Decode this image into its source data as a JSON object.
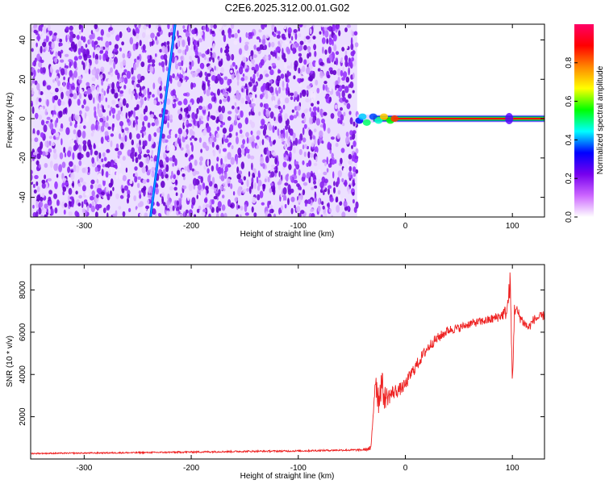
{
  "page_title": "C2E6.2025.312.00.01.G02",
  "chart_data": [
    {
      "type": "heatmap",
      "title": "C2E6.2025.312.00.01.G02",
      "xlabel": "Height of straight line (km)",
      "ylabel": "Frequency (Hz)",
      "xlim": [
        -350,
        130
      ],
      "ylim": [
        -50,
        48
      ],
      "x_ticks": [
        -300,
        -200,
        -100,
        0,
        100
      ],
      "y_ticks": [
        -40,
        -20,
        0,
        20,
        40
      ],
      "grid": false,
      "features": {
        "noise_region_x": [
          -350,
          -45
        ],
        "diagonal_trace": {
          "x": [
            -238,
            -215
          ],
          "y": [
            -50,
            48
          ]
        },
        "signal_line": {
          "x": [
            -45,
            130
          ],
          "y": 0
        },
        "spot_at_x": 97
      },
      "colorbar": {
        "label": "Normalized spectral amplitude",
        "ticks": [
          0.0,
          0.2,
          0.4,
          0.6,
          0.8
        ],
        "range": [
          0,
          1
        ],
        "colors": [
          "#ffffff",
          "#cc66ff",
          "#7700ee",
          "#0000ff",
          "#00ffff",
          "#00ff00",
          "#ffff00",
          "#ff8800",
          "#ff0000",
          "#ff0066"
        ]
      }
    },
    {
      "type": "line",
      "xlabel": "Height of straight line (km)",
      "ylabel": "SNR (10 * v/v)",
      "xlim": [
        -350,
        130
      ],
      "ylim": [
        0,
        9200
      ],
      "x_ticks": [
        -300,
        -200,
        -100,
        0,
        100
      ],
      "y_ticks": [
        2000,
        4000,
        6000,
        8000
      ],
      "grid": false,
      "series": [
        {
          "color": "#ee2222",
          "x": [
            -350,
            -300,
            -250,
            -200,
            -150,
            -100,
            -60,
            -40,
            -32,
            -28,
            -25,
            -22,
            -20,
            -15,
            -10,
            -5,
            0,
            5,
            10,
            15,
            20,
            25,
            30,
            40,
            50,
            60,
            70,
            80,
            90,
            95,
            98,
            100,
            102,
            105,
            110,
            115,
            120,
            130
          ],
          "values": [
            260,
            280,
            300,
            330,
            360,
            380,
            420,
            430,
            500,
            3900,
            2800,
            3700,
            2900,
            3000,
            3200,
            3300,
            3500,
            4000,
            4400,
            4800,
            5200,
            5500,
            5700,
            6100,
            6200,
            6400,
            6500,
            6600,
            6800,
            7000,
            8400,
            3500,
            7200,
            6900,
            6500,
            6200,
            6600,
            6800
          ],
          "noise_amplitude": [
            30,
            30,
            35,
            40,
            40,
            40,
            45,
            45,
            120,
            700,
            800,
            700,
            600,
            400,
            350,
            300,
            300,
            300,
            300,
            280,
            280,
            250,
            250,
            220,
            200,
            200,
            200,
            220,
            250,
            400,
            600,
            500,
            400,
            300,
            250,
            220,
            220,
            220
          ]
        }
      ]
    }
  ]
}
